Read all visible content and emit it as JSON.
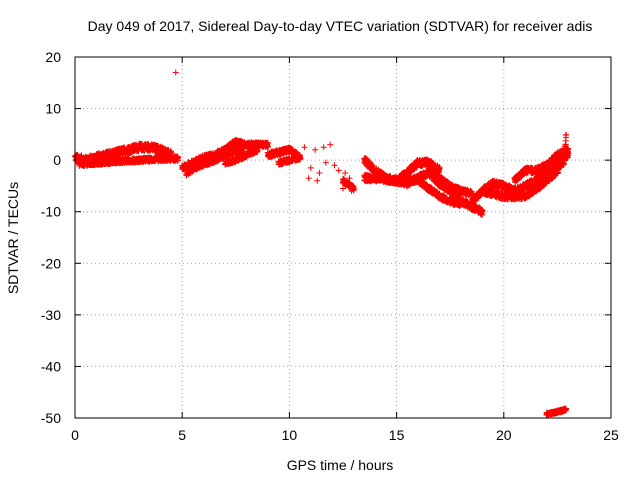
{
  "chart_data": {
    "type": "scatter",
    "title": "Day 049 of 2017, Sidereal Day-to-day VTEC variation (SDTVAR) for receiver adis",
    "xlabel": "GPS time / hours",
    "ylabel": "SDTVAR / TECUs",
    "xlim": [
      0,
      25
    ],
    "ylim": [
      -50,
      20
    ],
    "xticks": [
      "0",
      "5",
      "10",
      "15",
      "20",
      "25"
    ],
    "yticks": [
      "20",
      "10",
      "0",
      "-10",
      "-20",
      "-30",
      "-40",
      "-50"
    ],
    "grid": true,
    "marker": "+",
    "color": "#ff0000",
    "series": [
      {
        "name": "SDTVAR",
        "bands": [
          {
            "x": [
              0.0,
              0.5,
              1.0,
              1.5,
              2.0,
              2.5,
              3.0,
              3.5,
              4.0,
              4.5
            ],
            "y": [
              0.5,
              0.0,
              0.5,
              1.0,
              1.5,
              2.0,
              2.5,
              2.5,
              2.0,
              1.0
            ],
            "spread": 1.4
          },
          {
            "x": [
              0.2,
              1.0,
              2.0,
              3.0,
              4.0,
              4.8
            ],
            "y": [
              -0.8,
              -0.6,
              -0.2,
              0.0,
              0.2,
              0.3
            ],
            "spread": 0.8
          },
          {
            "x": [
              5.0,
              5.5,
              6.0,
              6.5,
              7.0,
              7.5
            ],
            "y": [
              -1.5,
              -0.5,
              0.5,
              1.0,
              2.0,
              3.5
            ],
            "spread": 1.0
          },
          {
            "x": [
              5.2,
              5.8,
              6.5,
              7.2,
              7.8
            ],
            "y": [
              -2.5,
              -1.0,
              0.0,
              1.5,
              2.0
            ],
            "spread": 1.0
          },
          {
            "x": [
              6.5,
              7.0,
              7.5,
              8.0,
              8.5,
              9.0
            ],
            "y": [
              0.5,
              2.0,
              3.5,
              3.0,
              3.0,
              3.0
            ],
            "spread": 0.9
          },
          {
            "x": [
              7.0,
              7.5,
              8.0,
              8.5
            ],
            "y": [
              -0.5,
              0.0,
              1.0,
              2.0
            ],
            "spread": 0.8
          },
          {
            "x": [
              9.0,
              9.5,
              10.0,
              10.5
            ],
            "y": [
              1.0,
              1.5,
              2.0,
              0.5
            ],
            "spread": 1.0
          },
          {
            "x": [
              9.5,
              10.0,
              10.5
            ],
            "y": [
              -0.5,
              0.0,
              0.5
            ],
            "spread": 0.8
          },
          {
            "x": [
              12.5,
              13.0
            ],
            "y": [
              -4.0,
              -5.5
            ],
            "spread": 1.0
          },
          {
            "x": [
              13.5,
              14.0,
              14.5,
              15.0,
              15.5,
              16.0,
              16.5,
              17.0
            ],
            "y": [
              0.0,
              -2.0,
              -3.5,
              -4.0,
              -2.5,
              -0.5,
              -0.5,
              -2.0
            ],
            "spread": 1.3
          },
          {
            "x": [
              13.5,
              14.0,
              15.0,
              15.5,
              16.0,
              16.5,
              17.0,
              17.5,
              18.0,
              18.5,
              19.0
            ],
            "y": [
              -3.5,
              -3.5,
              -4.0,
              -4.5,
              -3.5,
              -2.5,
              -4.5,
              -6.0,
              -8.0,
              -9.0,
              -10.0
            ],
            "spread": 1.2
          },
          {
            "x": [
              15.5,
              16.0,
              16.5,
              17.0,
              17.5,
              18.0
            ],
            "y": [
              -3.5,
              -4.0,
              -5.5,
              -7.0,
              -8.0,
              -8.5
            ],
            "spread": 1.0
          },
          {
            "x": [
              16.5,
              17.0,
              17.5,
              18.0,
              18.5
            ],
            "y": [
              -1.5,
              -3.5,
              -5.0,
              -6.0,
              -6.5
            ],
            "spread": 1.0
          },
          {
            "x": [
              18.5,
              19.0,
              19.5,
              20.0,
              20.5,
              21.0,
              21.5,
              22.0,
              22.5,
              23.0
            ],
            "y": [
              -8.0,
              -6.0,
              -4.5,
              -5.0,
              -6.0,
              -5.0,
              -4.0,
              -2.0,
              0.0,
              1.0
            ],
            "spread": 1.2
          },
          {
            "x": [
              19.0,
              20.0,
              21.0,
              22.0,
              22.5,
              22.8
            ],
            "y": [
              -6.0,
              -7.0,
              -7.0,
              -4.0,
              -2.0,
              0.5
            ],
            "spread": 1.2
          },
          {
            "x": [
              20.5,
              21.0,
              21.5,
              22.0,
              22.5,
              23.0
            ],
            "y": [
              -4.0,
              -2.0,
              -2.0,
              -1.0,
              1.0,
              2.0
            ],
            "spread": 1.1
          },
          {
            "x": [
              22.8,
              22.9
            ],
            "y": [
              -1.0,
              4.5
            ],
            "spread": 1.0
          },
          {
            "x": [
              22.0,
              22.3,
              22.6,
              22.9
            ],
            "y": [
              -49.2,
              -49.0,
              -48.7,
              -48.3
            ],
            "spread": 0.5
          }
        ],
        "points": [
          [
            4.7,
            17
          ],
          [
            10.7,
            2.5
          ],
          [
            11.0,
            -1.5
          ],
          [
            11.2,
            2.0
          ],
          [
            11.4,
            -2.5
          ],
          [
            11.6,
            2.5
          ],
          [
            11.7,
            -0.5
          ],
          [
            11.9,
            3.0
          ],
          [
            10.9,
            -3.5
          ],
          [
            11.3,
            -4.0
          ],
          [
            12.1,
            -1.0
          ],
          [
            12.3,
            -2.0
          ],
          [
            12.6,
            -2.5
          ],
          [
            12.8,
            -3.5
          ],
          [
            12.9,
            -6.0
          ],
          [
            12.5,
            -5.5
          ]
        ]
      }
    ]
  }
}
